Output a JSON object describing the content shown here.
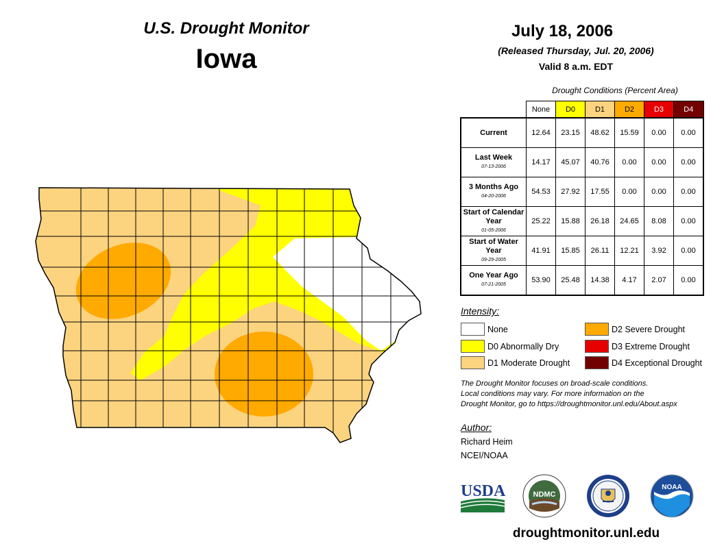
{
  "header": {
    "title": "U.S. Drought Monitor",
    "state": "Iowa",
    "date": "July 18, 2006",
    "released": "(Released Thursday, Jul. 20, 2006)",
    "valid": "Valid 8 a.m. EDT"
  },
  "table": {
    "caption": "Drought Conditions (Percent Area)",
    "columns": [
      "None",
      "D0",
      "D1",
      "D2",
      "D3",
      "D4"
    ],
    "column_colors": [
      "#ffffff",
      "#ffff00",
      "#fcd37f",
      "#ffaa00",
      "#e60000",
      "#730000"
    ],
    "rows": [
      {
        "label": "Current",
        "date": "",
        "values": [
          "12.64",
          "23.15",
          "48.62",
          "15.59",
          "0.00",
          "0.00"
        ]
      },
      {
        "label": "Last Week",
        "date": "07-13-2006",
        "values": [
          "14.17",
          "45.07",
          "40.76",
          "0.00",
          "0.00",
          "0.00"
        ]
      },
      {
        "label": "3 Months Ago",
        "date": "04-20-2006",
        "values": [
          "54.53",
          "27.92",
          "17.55",
          "0.00",
          "0.00",
          "0.00"
        ]
      },
      {
        "label": "Start of Calendar Year",
        "date": "01-05-2006",
        "values": [
          "25.22",
          "15.88",
          "26.18",
          "24.65",
          "8.08",
          "0.00"
        ]
      },
      {
        "label": "Start of Water Year",
        "date": "09-29-2005",
        "values": [
          "41.91",
          "15.85",
          "26.11",
          "12.21",
          "3.92",
          "0.00"
        ]
      },
      {
        "label": "One Year Ago",
        "date": "07-21-2005",
        "values": [
          "53.90",
          "25.48",
          "14.38",
          "4.17",
          "2.07",
          "0.00"
        ]
      }
    ]
  },
  "legend": {
    "title": "Intensity:",
    "items": [
      {
        "label": "None",
        "color": "#ffffff"
      },
      {
        "label": "D0 Abnormally Dry",
        "color": "#ffff00"
      },
      {
        "label": "D1 Moderate Drought",
        "color": "#fcd37f"
      },
      {
        "label": "D2 Severe Drought",
        "color": "#ffaa00"
      },
      {
        "label": "D3 Extreme Drought",
        "color": "#e60000"
      },
      {
        "label": "D4 Exceptional Drought",
        "color": "#730000"
      }
    ]
  },
  "note": {
    "line1": "The Drought Monitor focuses on broad-scale conditions.",
    "line2": "Local conditions may vary. For more information on the",
    "line3": "Drought Monitor, go to https://droughtmonitor.unl.edu/About.aspx"
  },
  "author": {
    "label": "Author:",
    "name": "Richard Heim",
    "org": "NCEI/NOAA"
  },
  "logos": {
    "usda": "USDA",
    "ndmc": "NDMC",
    "noaa": "NOAA"
  },
  "footer": {
    "url": "droughtmonitor.unl.edu"
  }
}
